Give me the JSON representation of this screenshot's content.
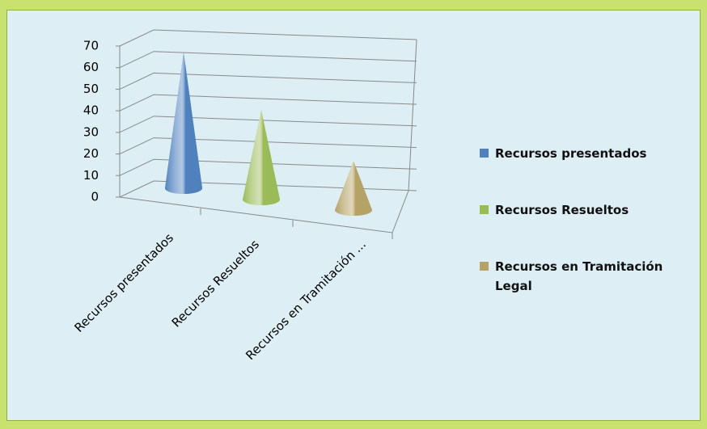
{
  "chart_data": {
    "type": "cone3d",
    "categories": [
      "Recursos presentados",
      "Recursos Resueltos",
      "Recursos en Tramitación ..."
    ],
    "values": [
      64,
      42,
      23
    ],
    "colors": [
      "#4f81bd",
      "#9bbb59",
      "#b5a267"
    ],
    "legend": [
      "Recursos presentados",
      "Recursos Resueltos",
      "Recursos en Tramitación Legal"
    ],
    "ylim": [
      0,
      70
    ],
    "yticks": [
      0,
      10,
      20,
      30,
      40,
      50,
      60,
      70
    ],
    "grid": true
  }
}
